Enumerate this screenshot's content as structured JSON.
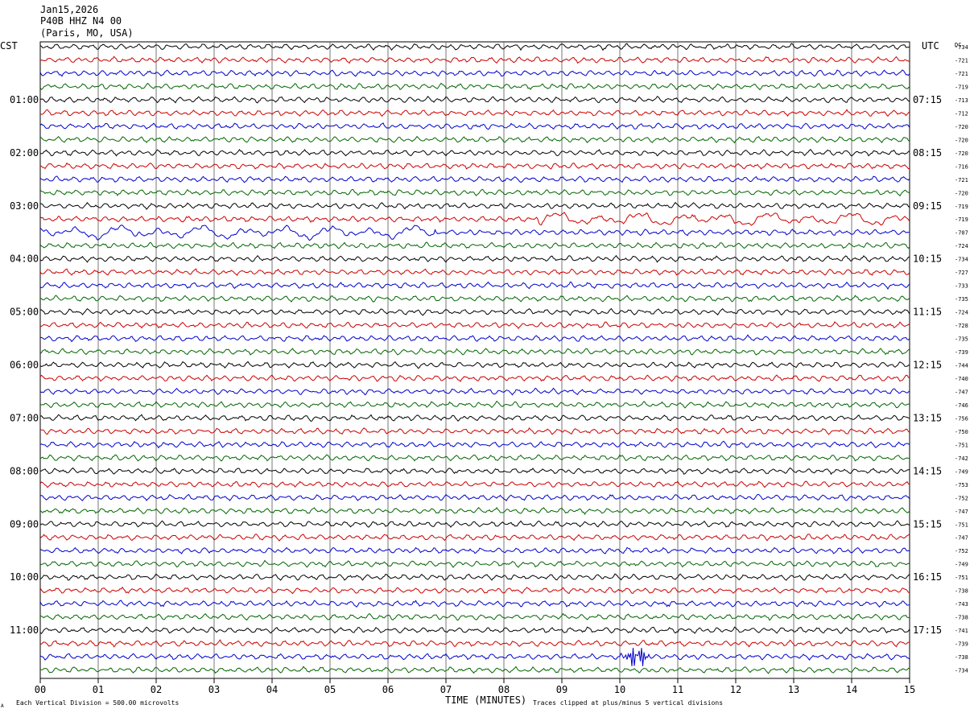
{
  "header": {
    "date": "Jan15,2026",
    "station": "P40B HHZ N4 00",
    "location": "(Paris, MO, USA)"
  },
  "labels": {
    "left_tz": "CST",
    "right_tz": "UTC",
    "dc": "DC",
    "xlabel": "TIME (MINUTES)",
    "scale_note": "Each Vertical Division =  500.00 microvolts",
    "clip_note": "Traces clipped at plus/minus 5 vertical divisions",
    "corner_mark": "A"
  },
  "colors": [
    "#000000",
    "#cc0000",
    "#0000cc",
    "#006600"
  ],
  "chart_data": {
    "type": "line",
    "title": "P40B HHZ N4 00",
    "xlabel": "TIME (MINUTES)",
    "x_ticks": [
      "00",
      "01",
      "02",
      "03",
      "04",
      "05",
      "06",
      "07",
      "08",
      "09",
      "10",
      "11",
      "12",
      "13",
      "14",
      "15"
    ],
    "xlim": [
      0,
      15
    ],
    "cst_hours": [
      "01:00",
      "02:00",
      "03:00",
      "04:00",
      "05:00",
      "06:00",
      "07:00",
      "08:00",
      "09:00",
      "10:00",
      "11:00"
    ],
    "utc_hours": [
      "07:15",
      "08:15",
      "09:15",
      "10:15",
      "11:15",
      "12:15",
      "13:15",
      "14:15",
      "15:15",
      "16:15",
      "17:15"
    ],
    "dc_offsets": [
      -734,
      -721,
      -721,
      -719,
      -713,
      -712,
      -720,
      -720,
      -720,
      -716,
      -721,
      -720,
      -719,
      -719,
      -707,
      -724,
      -734,
      -727,
      -733,
      -735,
      -724,
      -728,
      -735,
      -739,
      -744,
      -740,
      -747,
      -746,
      -756,
      -750,
      -751,
      -742,
      -749,
      -753,
      -752,
      -747,
      -751,
      -747,
      -752,
      -749,
      -751,
      -738,
      -743,
      -738,
      -741,
      -739,
      -738,
      -734
    ],
    "events": [
      {
        "trace": 13,
        "start_min": 8.6,
        "end_min": 15.0,
        "note": "long-period wave"
      },
      {
        "trace": 14,
        "start_min": 0.0,
        "end_min": 6.8,
        "note": "long-period wave"
      },
      {
        "trace": 46,
        "start_min": 9.9,
        "end_min": 10.5,
        "note": "local burst"
      }
    ]
  }
}
